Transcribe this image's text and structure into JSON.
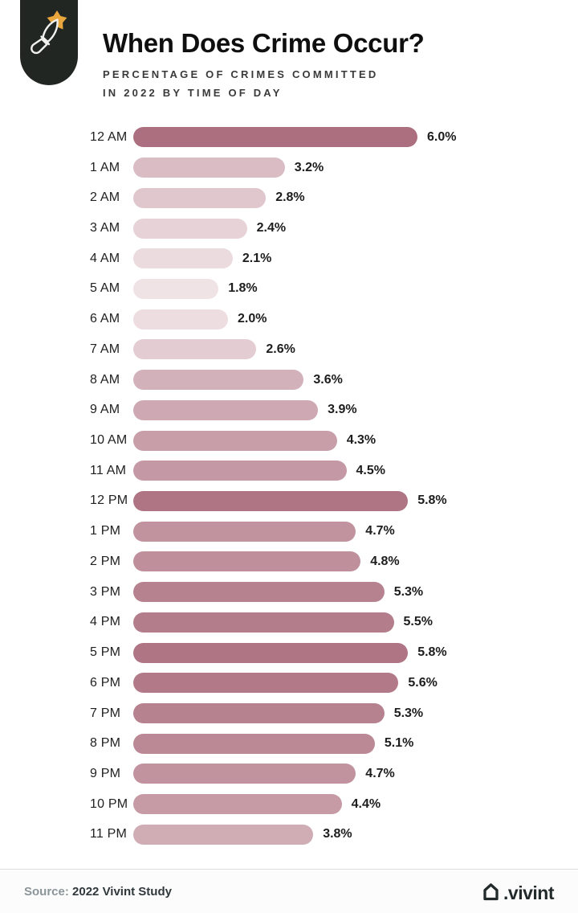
{
  "header": {
    "badge_icon": "knife-burst-icon",
    "title": "When Does Crime Occur?",
    "subtitle_line1": "PERCENTAGE OF CRIMES COMMITTED",
    "subtitle_line2": "IN 2022 BY TIME OF DAY"
  },
  "chart_data": {
    "type": "bar",
    "orientation": "horizontal",
    "title": "When Does Crime Occur?",
    "subtitle": "PERCENTAGE OF CRIMES COMMITTED IN 2022 BY TIME OF DAY",
    "categories": [
      "12 AM",
      "1 AM",
      "2 AM",
      "3 AM",
      "4 AM",
      "5 AM",
      "6 AM",
      "7 AM",
      "8 AM",
      "9 AM",
      "10 AM",
      "11 AM",
      "12 PM",
      "1 PM",
      "2 PM",
      "3 PM",
      "4 PM",
      "5 PM",
      "6 PM",
      "7 PM",
      "8 PM",
      "9 PM",
      "10 PM",
      "11 PM"
    ],
    "values": [
      6.0,
      3.2,
      2.8,
      2.4,
      2.1,
      1.8,
      2.0,
      2.6,
      3.6,
      3.9,
      4.3,
      4.5,
      5.8,
      4.7,
      4.8,
      5.3,
      5.5,
      5.8,
      5.6,
      5.3,
      5.1,
      4.7,
      4.4,
      3.8
    ],
    "value_labels": [
      "6.0%",
      "3.2%",
      "2.8%",
      "2.4%",
      "2.1%",
      "1.8%",
      "2.0%",
      "2.6%",
      "3.6%",
      "3.9%",
      "4.3%",
      "4.5%",
      "5.8%",
      "4.7%",
      "4.8%",
      "5.3%",
      "5.5%",
      "5.8%",
      "5.6%",
      "5.3%",
      "5.1%",
      "4.7%",
      "4.4%",
      "3.8%"
    ],
    "xlabel": "",
    "ylabel": "",
    "xlim": [
      0,
      6.0
    ],
    "grid": false,
    "legend": false,
    "value_labels_position": "right-of-bar",
    "color_scale": {
      "min_value": 1.8,
      "max_value": 6.0,
      "light_color": "#f0e3e6",
      "dark_color": "#ac6f7f"
    },
    "accent_colors": {
      "badge_background": "#212623",
      "burst_orange": "#e9a63c",
      "knife_outline": "#f0f0ec"
    }
  },
  "footer": {
    "source_label": "Source:",
    "source_text": "2022 Vivint Study",
    "brand_icon": "vivint-house-icon",
    "brand_text": ".vivint"
  }
}
